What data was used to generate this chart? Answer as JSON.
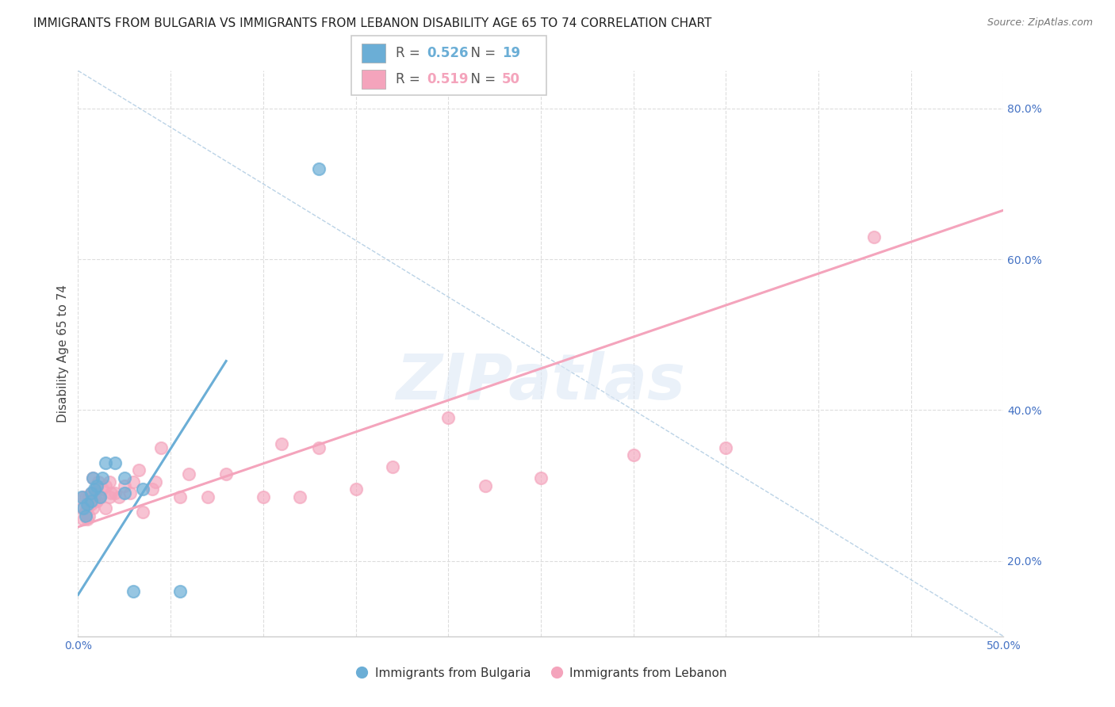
{
  "title": "IMMIGRANTS FROM BULGARIA VS IMMIGRANTS FROM LEBANON DISABILITY AGE 65 TO 74 CORRELATION CHART",
  "source": "Source: ZipAtlas.com",
  "ylabel": "Disability Age 65 to 74",
  "xlim": [
    0.0,
    0.5
  ],
  "ylim": [
    0.1,
    0.85
  ],
  "xticks": [
    0.0,
    0.05,
    0.1,
    0.15,
    0.2,
    0.25,
    0.3,
    0.35,
    0.4,
    0.45,
    0.5
  ],
  "xtick_labels": [
    "0.0%",
    "",
    "",
    "",
    "",
    "",
    "",
    "",
    "",
    "",
    "50.0%"
  ],
  "yticks": [
    0.2,
    0.4,
    0.6,
    0.8
  ],
  "ytick_labels": [
    "20.0%",
    "40.0%",
    "60.0%",
    "80.0%"
  ],
  "legend_bulgaria": {
    "R": 0.526,
    "N": 19
  },
  "legend_lebanon": {
    "R": 0.519,
    "N": 50
  },
  "bulgaria_color": "#6baed6",
  "lebanon_color": "#f4a4bc",
  "bulgaria_scatter": {
    "x": [
      0.002,
      0.003,
      0.004,
      0.005,
      0.007,
      0.007,
      0.008,
      0.009,
      0.01,
      0.012,
      0.013,
      0.015,
      0.02,
      0.025,
      0.03,
      0.035,
      0.055,
      0.13,
      0.025
    ],
    "y": [
      0.285,
      0.27,
      0.26,
      0.275,
      0.29,
      0.28,
      0.31,
      0.295,
      0.3,
      0.285,
      0.31,
      0.33,
      0.33,
      0.31,
      0.16,
      0.295,
      0.16,
      0.72,
      0.29
    ]
  },
  "lebanon_scatter": {
    "x": [
      0.002,
      0.003,
      0.003,
      0.004,
      0.004,
      0.005,
      0.005,
      0.006,
      0.006,
      0.007,
      0.007,
      0.008,
      0.008,
      0.009,
      0.01,
      0.01,
      0.011,
      0.012,
      0.013,
      0.015,
      0.015,
      0.017,
      0.017,
      0.018,
      0.02,
      0.022,
      0.025,
      0.028,
      0.03,
      0.033,
      0.035,
      0.04,
      0.042,
      0.045,
      0.055,
      0.06,
      0.07,
      0.08,
      0.1,
      0.11,
      0.12,
      0.13,
      0.15,
      0.17,
      0.2,
      0.22,
      0.25,
      0.3,
      0.35,
      0.43
    ],
    "y": [
      0.27,
      0.255,
      0.285,
      0.265,
      0.285,
      0.255,
      0.27,
      0.26,
      0.285,
      0.275,
      0.29,
      0.27,
      0.31,
      0.28,
      0.28,
      0.295,
      0.305,
      0.285,
      0.295,
      0.27,
      0.3,
      0.285,
      0.305,
      0.29,
      0.29,
      0.285,
      0.3,
      0.29,
      0.305,
      0.32,
      0.265,
      0.295,
      0.305,
      0.35,
      0.285,
      0.315,
      0.285,
      0.315,
      0.285,
      0.355,
      0.285,
      0.35,
      0.295,
      0.325,
      0.39,
      0.3,
      0.31,
      0.34,
      0.35,
      0.63
    ]
  },
  "bulgaria_trendline": {
    "x": [
      0.0,
      0.08
    ],
    "y": [
      0.155,
      0.465
    ]
  },
  "lebanon_trendline": {
    "x": [
      0.0,
      0.5
    ],
    "y": [
      0.245,
      0.665
    ]
  },
  "diagonal_line": {
    "x": [
      0.0,
      0.5
    ],
    "y": [
      0.85,
      0.1
    ]
  },
  "watermark": "ZIPatlas",
  "background_color": "#ffffff",
  "grid_color": "#dddddd",
  "title_fontsize": 11,
  "axis_label_fontsize": 11,
  "tick_color": "#4472c4",
  "bottom_legend_bulgaria": "Immigrants from Bulgaria",
  "bottom_legend_lebanon": "Immigrants from Lebanon"
}
